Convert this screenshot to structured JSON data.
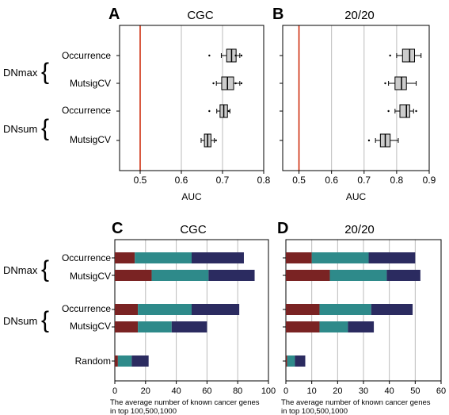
{
  "figure": {
    "panel_letters": [
      "A",
      "B",
      "C",
      "D"
    ],
    "group_labels": {
      "dnmax": "DNmax",
      "dnsum": "DNsum"
    },
    "row_labels": [
      "Occurrence",
      "MutsigCV",
      "Occurrence",
      "MutsigCV",
      "Random"
    ]
  },
  "colors": {
    "box_fill": "#cccccc",
    "reference_line": "#cc2200",
    "grid": "#bbbbbb",
    "bar_top100": "#7a2323",
    "bar_top500": "#2e8a8a",
    "bar_top1000": "#2b2b60"
  },
  "chart_data": [
    {
      "panel": "A",
      "type": "boxplot",
      "title": "CGC",
      "xlabel": "AUC",
      "xlim": [
        0.45,
        0.8
      ],
      "xticks": [
        "0.5",
        "0.6",
        "0.7",
        "0.8"
      ],
      "reference_line_x": 0.5,
      "rows": [
        {
          "group": "DNmax",
          "label": "Occurrence",
          "whisker_low": 0.697,
          "q1": 0.71,
          "median": 0.722,
          "q3": 0.733,
          "whisker_high": 0.742,
          "outliers": [
            0.668,
            0.732,
            0.746
          ]
        },
        {
          "group": "DNmax",
          "label": "MutsigCV",
          "whisker_low": 0.685,
          "q1": 0.698,
          "median": 0.712,
          "q3": 0.727,
          "whisker_high": 0.742,
          "outliers": [
            0.678,
            0.732,
            0.746
          ]
        },
        {
          "group": "DNsum",
          "label": "Occurrence",
          "whisker_low": 0.686,
          "q1": 0.694,
          "median": 0.703,
          "q3": 0.712,
          "whisker_high": 0.718,
          "outliers": [
            0.668,
            0.715
          ]
        },
        {
          "group": "DNsum",
          "label": "MutsigCV",
          "whisker_low": 0.648,
          "q1": 0.656,
          "median": 0.664,
          "q3": 0.672,
          "whisker_high": 0.68,
          "outliers": [
            0.684
          ]
        }
      ]
    },
    {
      "panel": "B",
      "type": "boxplot",
      "title": "20/20",
      "xlabel": "AUC",
      "xlim": [
        0.45,
        0.9
      ],
      "xticks": [
        "0.5",
        "0.6",
        "0.7",
        "0.8",
        "0.9"
      ],
      "reference_line_x": 0.5,
      "rows": [
        {
          "group": "DNmax",
          "label": "Occurrence",
          "whisker_low": 0.8,
          "q1": 0.818,
          "median": 0.84,
          "q3": 0.855,
          "whisker_high": 0.875,
          "outliers": [
            0.78
          ]
        },
        {
          "group": "DNmax",
          "label": "MutsigCV",
          "whisker_low": 0.775,
          "q1": 0.795,
          "median": 0.815,
          "q3": 0.83,
          "whisker_high": 0.86,
          "outliers": [
            0.765
          ]
        },
        {
          "group": "DNsum",
          "label": "Occurrence",
          "whisker_low": 0.795,
          "q1": 0.81,
          "median": 0.83,
          "q3": 0.84,
          "whisker_high": 0.852,
          "outliers": [
            0.775,
            0.86
          ]
        },
        {
          "group": "DNsum",
          "label": "MutsigCV",
          "whisker_low": 0.735,
          "q1": 0.75,
          "median": 0.765,
          "q3": 0.78,
          "whisker_high": 0.805,
          "outliers": [
            0.715
          ]
        }
      ]
    },
    {
      "panel": "C",
      "type": "bar",
      "stacked": true,
      "orientation": "horizontal",
      "title": "CGC",
      "xlabel": "The average number of known cancer genes\nin top 100,500,1000",
      "xlim": [
        0,
        100
      ],
      "xticks": [
        "0",
        "20",
        "40",
        "60",
        "80",
        "100"
      ],
      "categories": [
        "Occurrence",
        "MutsigCV",
        "Occurrence",
        "MutsigCV",
        "Random"
      ],
      "groups": [
        "DNmax",
        "DNmax",
        "DNsum",
        "DNsum",
        ""
      ],
      "series": [
        {
          "values": [
            13,
            24,
            15,
            15,
            2
          ]
        },
        {
          "values": [
            37,
            37,
            35,
            22,
            9
          ]
        },
        {
          "values": [
            34,
            30,
            31,
            23,
            11
          ]
        }
      ]
    },
    {
      "panel": "D",
      "type": "bar",
      "stacked": true,
      "orientation": "horizontal",
      "title": "20/20",
      "xlabel": "The average number of known cancer genes\nin top 100,500,1000",
      "xlim": [
        0,
        60
      ],
      "xticks": [
        "0",
        "10",
        "20",
        "30",
        "40",
        "50",
        "60"
      ],
      "categories": [
        "Occurrence",
        "MutsigCV",
        "Occurrence",
        "MutsigCV",
        "Random"
      ],
      "groups": [
        "DNmax",
        "DNmax",
        "DNsum",
        "DNsum",
        ""
      ],
      "series": [
        {
          "values": [
            10,
            17,
            13,
            13,
            0.5
          ]
        },
        {
          "values": [
            22,
            22,
            20,
            11,
            3
          ]
        },
        {
          "values": [
            18,
            13,
            16,
            10,
            4
          ]
        }
      ]
    }
  ]
}
